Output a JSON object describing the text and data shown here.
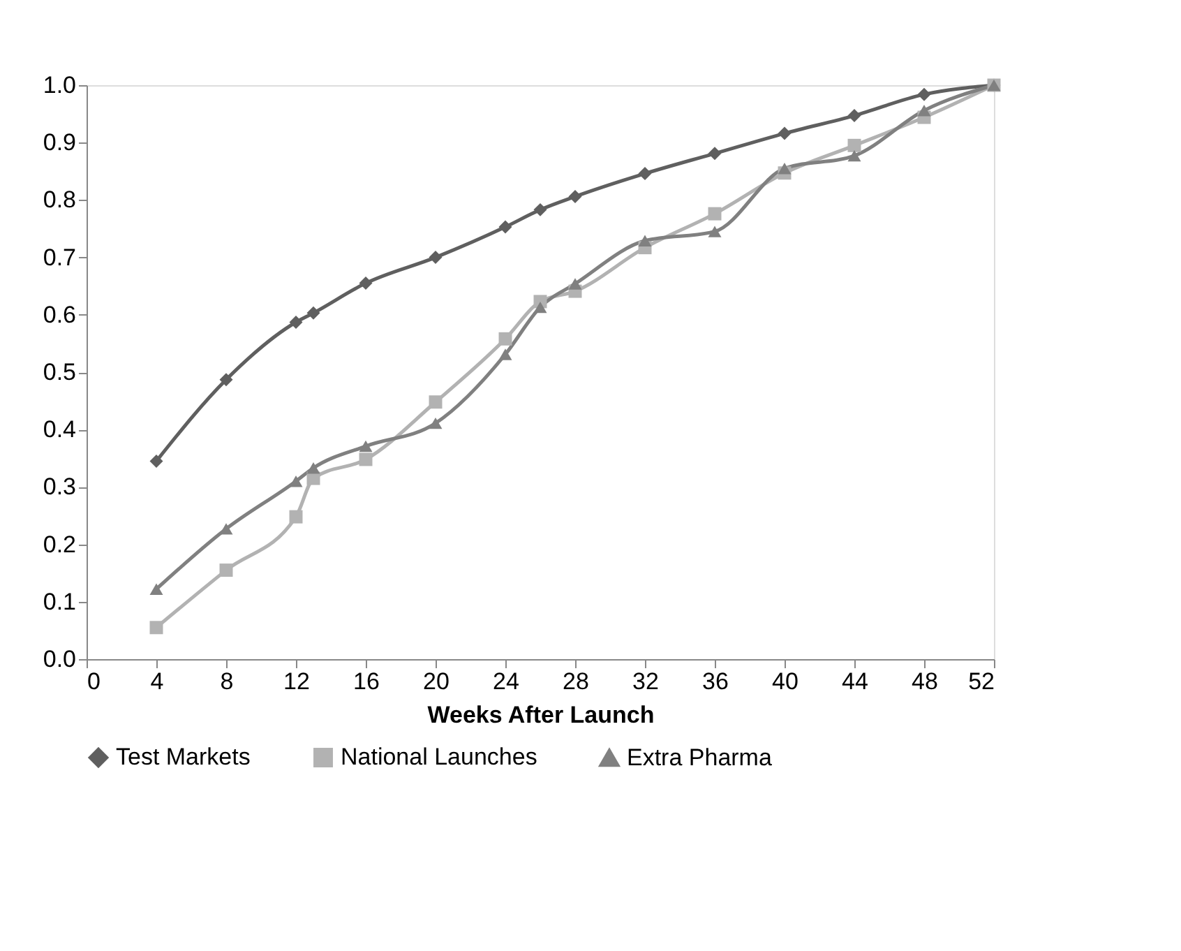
{
  "chart_data": {
    "type": "line",
    "xlabel": "Weeks After Launch",
    "x": [
      4,
      8,
      12,
      13,
      16,
      20,
      24,
      26,
      28,
      32,
      36,
      40,
      44,
      48,
      52
    ],
    "xlim": [
      0,
      52
    ],
    "xticks": [
      0,
      4,
      8,
      12,
      16,
      20,
      24,
      28,
      32,
      36,
      40,
      44,
      48,
      52
    ],
    "ylim": [
      0,
      1
    ],
    "yticks": [
      {
        "value": 0,
        "label": "0.0"
      },
      0.1,
      0.2,
      0.3,
      0.4,
      0.5,
      0.6,
      0.7,
      0.8,
      0.9,
      {
        "value": 1,
        "label": "1.0"
      }
    ],
    "grid": false,
    "legend": "bottom",
    "line_style": "solid",
    "series": [
      {
        "name": "Test Markets",
        "color": "#5f5f5f",
        "marker": "diamond",
        "values": [
          0.345,
          0.487,
          0.587,
          0.603,
          0.655,
          0.7,
          0.753,
          0.783,
          0.806,
          0.846,
          0.881,
          0.916,
          0.947,
          0.984,
          1.0
        ]
      },
      {
        "name": "National Launches",
        "color": "#b2b2b2",
        "marker": "square",
        "values": [
          0.055,
          0.155,
          0.248,
          0.315,
          0.348,
          0.448,
          0.558,
          0.623,
          0.641,
          0.717,
          0.776,
          0.847,
          0.895,
          0.944,
          1.0
        ]
      },
      {
        "name": "Extra Pharma",
        "color": "#808080",
        "marker": "triangle",
        "values": [
          0.122,
          0.227,
          0.31,
          0.333,
          0.371,
          0.411,
          0.531,
          0.613,
          0.654,
          0.729,
          0.745,
          0.855,
          0.877,
          0.956,
          1.0
        ]
      }
    ]
  }
}
